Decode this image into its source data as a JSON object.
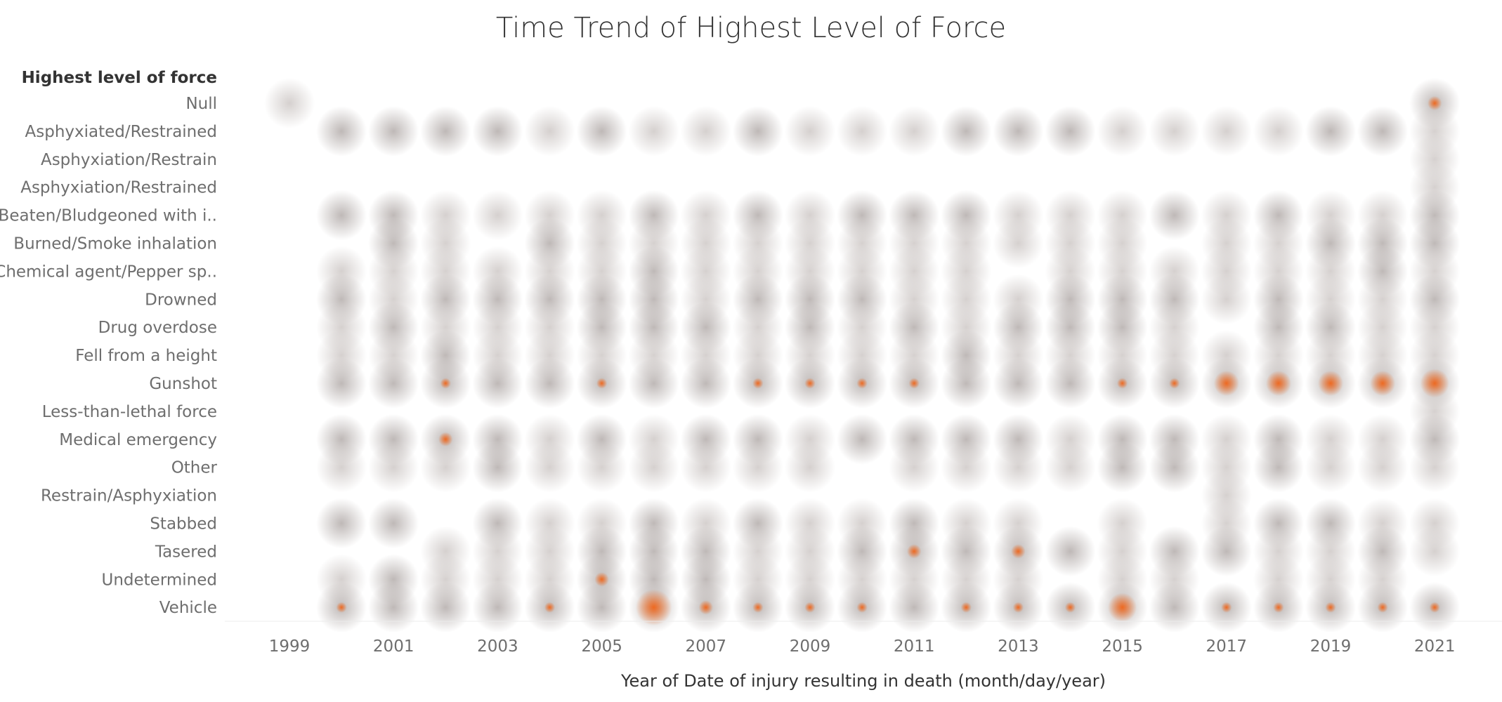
{
  "title": "Time Trend of Highest Level of Force",
  "chart_data": {
    "type": "heatmap",
    "title": "Time Trend of Highest Level of Force",
    "row_header": "Highest level of force",
    "xlabel": "Year of Date of injury resulting in death (month/day/year)",
    "categories": [
      "Null",
      "Asphyxiated/Restrained",
      "Asphyxiation/Restrain",
      "Asphyxiation/Restrained",
      "Beaten/Bludgeoned with i..",
      "Burned/Smoke inhalation",
      "Chemical agent/Pepper sp..",
      "Drowned",
      "Drug overdose",
      "Fell from a height",
      "Gunshot",
      "Less-than-lethal force",
      "Medical emergency",
      "Other",
      "Restrain/Asphyxiation",
      "Stabbed",
      "Tasered",
      "Undetermined",
      "Vehicle"
    ],
    "years": [
      1999,
      2000,
      2001,
      2002,
      2003,
      2004,
      2005,
      2006,
      2007,
      2008,
      2009,
      2010,
      2011,
      2012,
      2013,
      2014,
      2015,
      2016,
      2017,
      2018,
      2019,
      2020,
      2021
    ],
    "tick_labels": [
      "1999",
      "2001",
      "2003",
      "2005",
      "2007",
      "2009",
      "2011",
      "2013",
      "2015",
      "2017",
      "2019",
      "2021"
    ],
    "color_low": "#d8cfcc",
    "color_mid": "#8a7f7c",
    "color_high": "#ee6a22",
    "counts": {
      "Null": {
        "1999": 1,
        "2021": 6
      },
      "Asphyxiated/Restrained": {
        "2000": 3,
        "2001": 3,
        "2002": 3,
        "2003": 3,
        "2004": 1,
        "2005": 3,
        "2006": 1,
        "2007": 1,
        "2008": 3,
        "2009": 1,
        "2010": 1,
        "2011": 1,
        "2012": 3,
        "2013": 3,
        "2014": 3,
        "2015": 1,
        "2016": 1,
        "2017": 1,
        "2018": 1,
        "2019": 3,
        "2020": 3,
        "2021": 2
      },
      "Asphyxiation/Restrain": {
        "2021": 1
      },
      "Asphyxiation/Restrained": {
        "2021": 1
      },
      "Beaten/Bludgeoned with i..": {
        "2000": 3,
        "2001": 3,
        "2002": 1,
        "2003": 1,
        "2004": 1,
        "2005": 1,
        "2006": 3,
        "2007": 1,
        "2008": 3,
        "2009": 1,
        "2010": 3,
        "2011": 3,
        "2012": 3,
        "2013": 2,
        "2014": 1,
        "2015": 1,
        "2016": 3,
        "2017": 1,
        "2018": 3,
        "2019": 1,
        "2020": 1,
        "2021": 3
      },
      "Burned/Smoke inhalation": {
        "2001": 3,
        "2002": 1,
        "2004": 3,
        "2005": 1,
        "2006": 1,
        "2007": 1,
        "2008": 1,
        "2009": 1,
        "2010": 1,
        "2011": 1,
        "2012": 1,
        "2013": 1,
        "2014": 1,
        "2015": 1,
        "2017": 1,
        "2018": 1,
        "2019": 3,
        "2020": 3,
        "2021": 3
      },
      "Chemical agent/Pepper sp..": {
        "2000": 1,
        "2001": 1,
        "2002": 1,
        "2003": 1,
        "2004": 1,
        "2005": 1,
        "2006": 3,
        "2007": 1,
        "2008": 1,
        "2009": 1,
        "2010": 1,
        "2011": 1,
        "2012": 1,
        "2014": 1,
        "2015": 1,
        "2016": 1,
        "2017": 1,
        "2018": 1,
        "2019": 1,
        "2020": 3,
        "2021": 1
      },
      "Drowned": {
        "2000": 3,
        "2001": 1,
        "2002": 3,
        "2003": 3,
        "2004": 3,
        "2005": 3,
        "2006": 3,
        "2007": 1,
        "2008": 3,
        "2009": 3,
        "2010": 3,
        "2011": 1,
        "2012": 1,
        "2013": 1,
        "2014": 3,
        "2015": 3,
        "2016": 3,
        "2017": 1,
        "2018": 3,
        "2019": 1,
        "2020": 1,
        "2021": 3
      },
      "Drug overdose": {
        "2000": 1,
        "2001": 3,
        "2002": 1,
        "2003": 1,
        "2004": 1,
        "2005": 3,
        "2006": 3,
        "2007": 3,
        "2008": 1,
        "2009": 3,
        "2010": 1,
        "2011": 3,
        "2012": 1,
        "2013": 3,
        "2014": 3,
        "2015": 3,
        "2016": 1,
        "2018": 3,
        "2019": 3,
        "2020": 1,
        "2021": 1
      },
      "Fell from a height": {
        "2000": 1,
        "2001": 1,
        "2002": 3,
        "2003": 1,
        "2004": 1,
        "2005": 1,
        "2006": 1,
        "2007": 1,
        "2008": 1,
        "2009": 1,
        "2010": 1,
        "2011": 1,
        "2012": 3,
        "2013": 1,
        "2014": 1,
        "2015": 1,
        "2016": 1,
        "2017": 1,
        "2018": 1,
        "2019": 1,
        "2020": 1,
        "2021": 2
      },
      "Gunshot": {
        "2000": 3,
        "2001": 3,
        "2002": 5,
        "2003": 3,
        "2004": 3,
        "2005": 5,
        "2006": 3,
        "2007": 3,
        "2008": 5,
        "2009": 5,
        "2010": 5,
        "2011": 5,
        "2012": 3,
        "2013": 3,
        "2014": 3,
        "2015": 5,
        "2016": 5,
        "2017": 9,
        "2018": 9,
        "2019": 9,
        "2020": 9,
        "2021": 10
      },
      "Less-than-lethal force": {
        "2021": 1
      },
      "Medical emergency": {
        "2000": 3,
        "2001": 3,
        "2002": 6,
        "2003": 3,
        "2004": 1,
        "2005": 3,
        "2006": 1,
        "2007": 3,
        "2008": 3,
        "2009": 1,
        "2010": 3,
        "2011": 3,
        "2012": 3,
        "2013": 3,
        "2014": 1,
        "2015": 3,
        "2016": 3,
        "2017": 1,
        "2018": 3,
        "2019": 1,
        "2020": 1,
        "2021": 3
      },
      "Other": {
        "2000": 1,
        "2001": 1,
        "2002": 1,
        "2003": 3,
        "2004": 1,
        "2005": 1,
        "2006": 1,
        "2007": 1,
        "2008": 1,
        "2009": 1,
        "2011": 1,
        "2012": 1,
        "2013": 1,
        "2014": 1,
        "2015": 3,
        "2016": 3,
        "2017": 1,
        "2018": 3,
        "2019": 1,
        "2020": 1,
        "2021": 1
      },
      "Restrain/Asphyxiation": {
        "2017": 1
      },
      "Stabbed": {
        "2000": 3,
        "2001": 3,
        "2003": 3,
        "2004": 1,
        "2005": 1,
        "2006": 3,
        "2007": 1,
        "2008": 3,
        "2009": 1,
        "2010": 1,
        "2011": 3,
        "2012": 1,
        "2013": 1,
        "2015": 1,
        "2017": 1,
        "2018": 3,
        "2019": 3,
        "2020": 1,
        "2021": 1
      },
      "Tasered": {
        "2002": 1,
        "2003": 1,
        "2004": 1,
        "2005": 3,
        "2006": 3,
        "2007": 3,
        "2008": 1,
        "2009": 1,
        "2010": 3,
        "2011": 6,
        "2012": 3,
        "2013": 6,
        "2014": 3,
        "2015": 1,
        "2016": 3,
        "2017": 3,
        "2018": 1,
        "2019": 1,
        "2020": 3,
        "2021": 1
      },
      "Undetermined": {
        "2000": 1,
        "2001": 3,
        "2002": 1,
        "2003": 1,
        "2004": 1,
        "2005": 6,
        "2006": 3,
        "2007": 3,
        "2008": 1,
        "2009": 1,
        "2010": 1,
        "2011": 1,
        "2012": 1,
        "2013": 1,
        "2015": 1,
        "2016": 1,
        "2018": 1,
        "2019": 1,
        "2020": 1
      },
      "Vehicle": {
        "2000": 5,
        "2001": 3,
        "2002": 3,
        "2003": 3,
        "2004": 5,
        "2005": 3,
        "2006": 12,
        "2007": 6,
        "2008": 5,
        "2009": 5,
        "2010": 5,
        "2011": 3,
        "2012": 5,
        "2013": 5,
        "2014": 5,
        "2015": 10,
        "2016": 3,
        "2017": 5,
        "2018": 5,
        "2019": 5,
        "2020": 5,
        "2021": 5
      }
    }
  }
}
